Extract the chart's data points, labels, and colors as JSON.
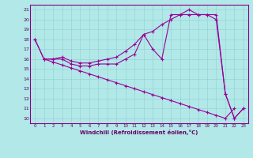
{
  "xlabel": "Windchill (Refroidissement éolien,°C)",
  "background_color": "#b2e8e8",
  "line_color": "#990099",
  "xlim": [
    -0.5,
    23.5
  ],
  "ylim": [
    9.5,
    21.5
  ],
  "xticks": [
    0,
    1,
    2,
    3,
    4,
    5,
    6,
    7,
    8,
    9,
    10,
    11,
    12,
    13,
    14,
    15,
    16,
    17,
    18,
    19,
    20,
    21,
    22,
    23
  ],
  "yticks": [
    10,
    11,
    12,
    13,
    14,
    15,
    16,
    17,
    18,
    19,
    20,
    21
  ],
  "series": [
    [
      18.0,
      16.0,
      16.0,
      16.0,
      15.5,
      15.3,
      15.3,
      15.5,
      15.5,
      15.5,
      16.0,
      16.5,
      18.5,
      17.0,
      16.0,
      20.5,
      20.5,
      21.0,
      20.5,
      20.5,
      20.5,
      12.5,
      10.0,
      11.0
    ],
    [
      18.0,
      16.0,
      16.0,
      16.2,
      15.8,
      15.6,
      15.6,
      15.8,
      16.0,
      16.2,
      16.8,
      17.5,
      18.5,
      18.8,
      19.5,
      20.0,
      20.5,
      20.5,
      20.5,
      20.5,
      20.0,
      12.5,
      10.0,
      11.0
    ],
    [
      16.0,
      15.7,
      15.4,
      15.1,
      14.8,
      14.5,
      14.2,
      13.9,
      13.6,
      13.3,
      13.0,
      12.7,
      12.4,
      12.1,
      11.8,
      11.5,
      11.2,
      10.9,
      10.6,
      10.3,
      10.0,
      11.0,
      null,
      null
    ]
  ],
  "series_x": [
    [
      0,
      1,
      2,
      3,
      4,
      5,
      6,
      7,
      8,
      9,
      10,
      11,
      12,
      13,
      14,
      15,
      16,
      17,
      18,
      19,
      20,
      21,
      22,
      23
    ],
    [
      0,
      1,
      2,
      3,
      4,
      5,
      6,
      7,
      8,
      9,
      10,
      11,
      12,
      13,
      14,
      15,
      16,
      17,
      18,
      19,
      20,
      21,
      22,
      23
    ],
    [
      1,
      2,
      3,
      4,
      5,
      6,
      7,
      8,
      9,
      10,
      11,
      12,
      13,
      14,
      15,
      16,
      17,
      18,
      19,
      20,
      21,
      22
    ]
  ]
}
